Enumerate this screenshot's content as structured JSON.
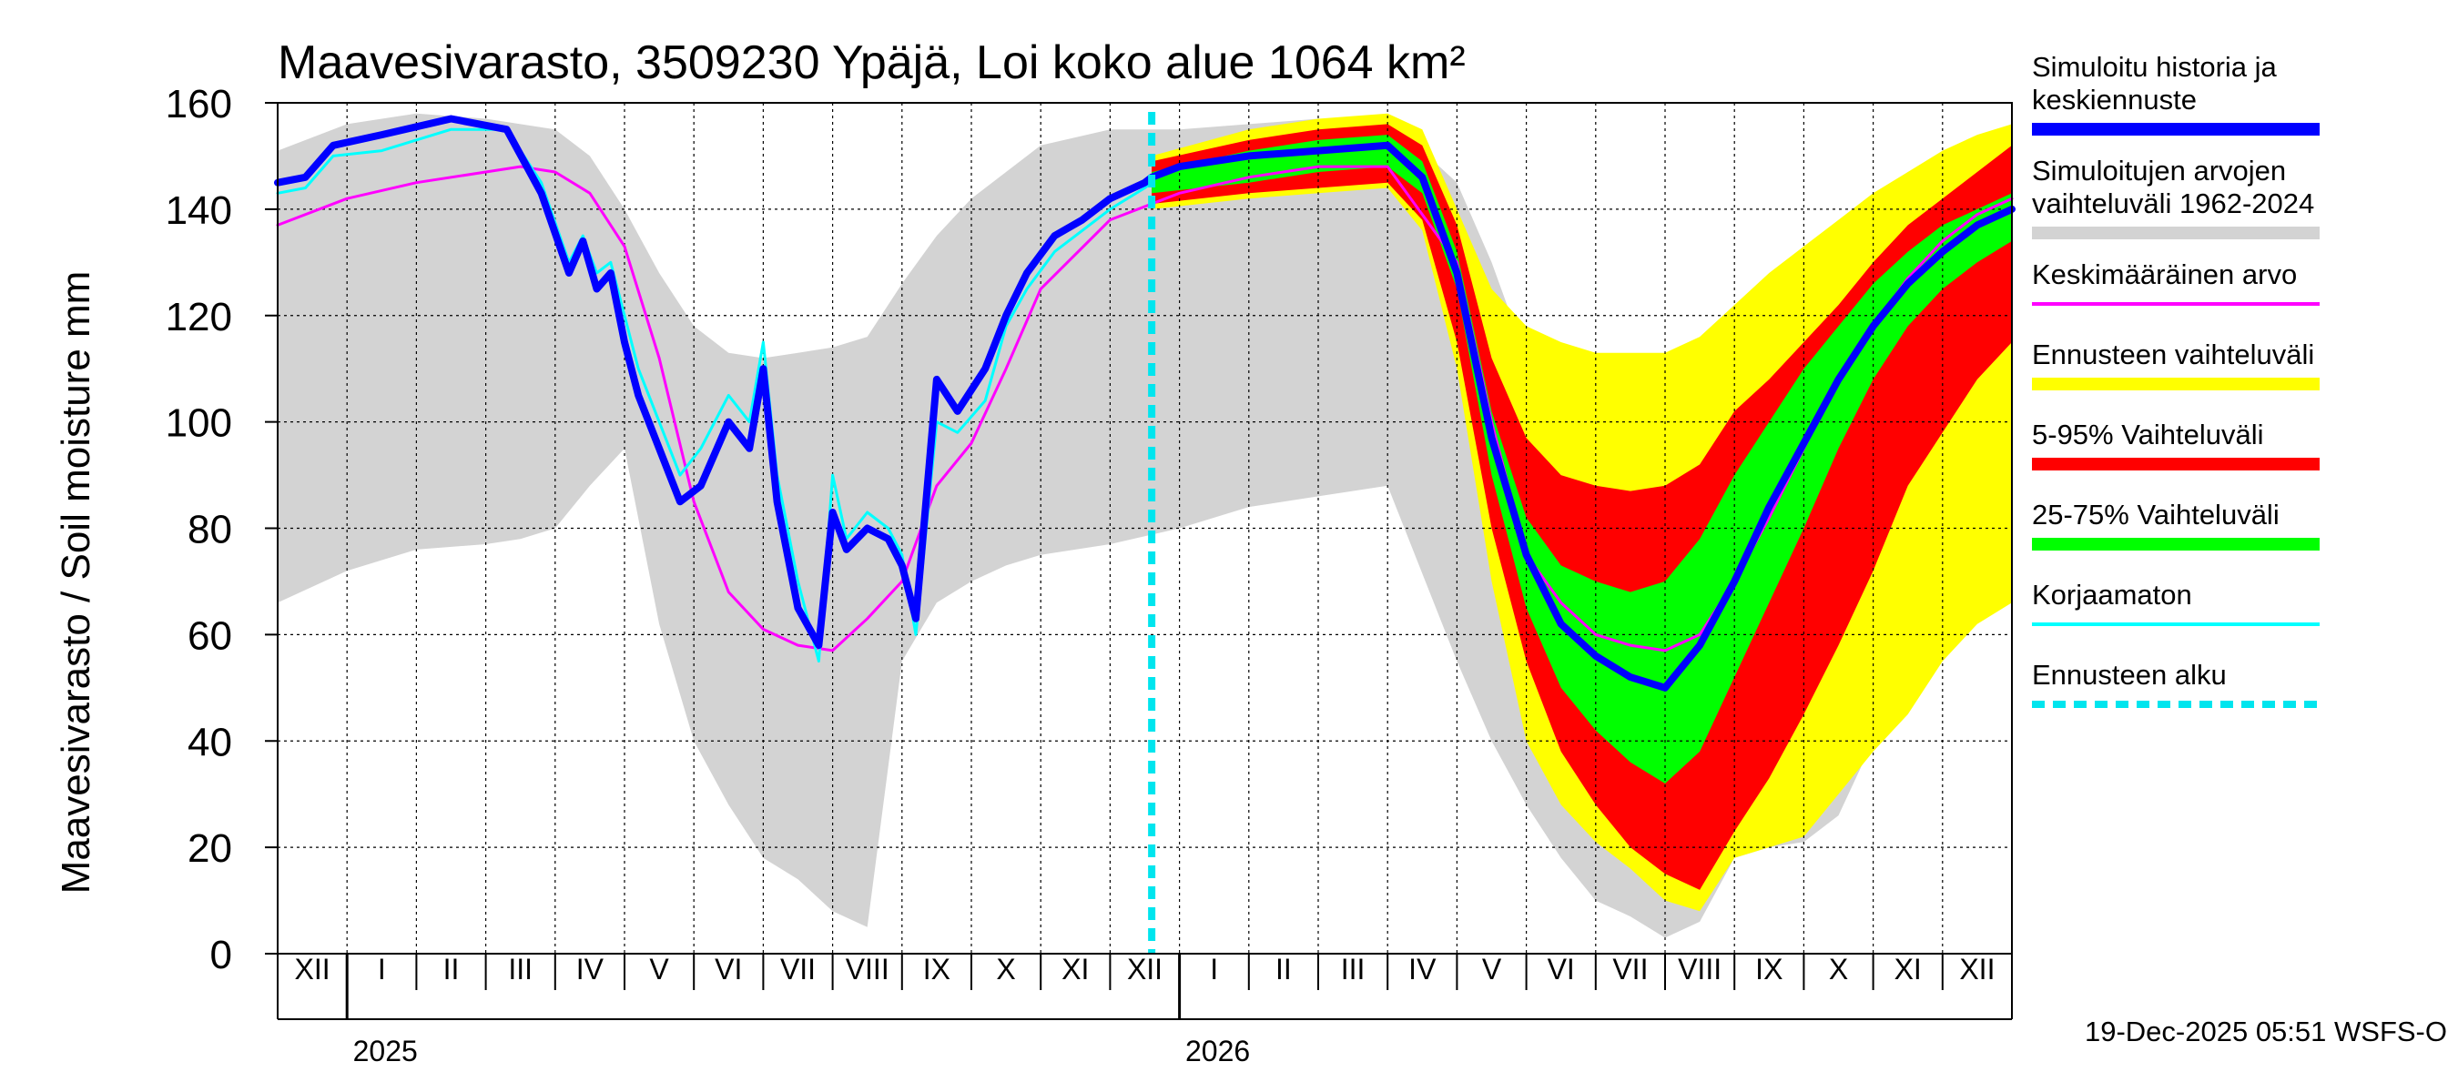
{
  "chart_data": {
    "type": "area",
    "title": "Maavesivarasto, 3509230 Ypäjä, Loi koko alue 1064 km²",
    "ylabel": "Maavesivarasto / Soil moisture   mm",
    "ylim": [
      0,
      160
    ],
    "yticks": [
      0,
      20,
      40,
      60,
      80,
      100,
      120,
      140,
      160
    ],
    "xlim_month": [
      0,
      25
    ],
    "grid": true,
    "forecast_start_month": 12.6,
    "months": [
      {
        "label": "XII",
        "pos": 0.5
      },
      {
        "label": "I",
        "pos": 1.5
      },
      {
        "label": "II",
        "pos": 2.5
      },
      {
        "label": "III",
        "pos": 3.5
      },
      {
        "label": "IV",
        "pos": 4.5
      },
      {
        "label": "V",
        "pos": 5.5
      },
      {
        "label": "VI",
        "pos": 6.5
      },
      {
        "label": "VII",
        "pos": 7.5
      },
      {
        "label": "VIII",
        "pos": 8.5
      },
      {
        "label": "IX",
        "pos": 9.5
      },
      {
        "label": "X",
        "pos": 10.5
      },
      {
        "label": "XI",
        "pos": 11.5
      },
      {
        "label": "XII",
        "pos": 12.5
      },
      {
        "label": "I",
        "pos": 13.5
      },
      {
        "label": "II",
        "pos": 14.5
      },
      {
        "label": "III",
        "pos": 15.5
      },
      {
        "label": "IV",
        "pos": 16.5
      },
      {
        "label": "V",
        "pos": 17.5
      },
      {
        "label": "VI",
        "pos": 18.5
      },
      {
        "label": "VII",
        "pos": 19.5
      },
      {
        "label": "VIII",
        "pos": 20.5
      },
      {
        "label": "IX",
        "pos": 21.5
      },
      {
        "label": "X",
        "pos": 22.5
      },
      {
        "label": "XI",
        "pos": 23.5
      },
      {
        "label": "XII",
        "pos": 24.5
      }
    ],
    "years": [
      {
        "label": "2025",
        "pos": 1.0
      },
      {
        "label": "2026",
        "pos": 13.0
      }
    ],
    "historical_range": {
      "name": "Simuloitujen arvojen vaihteluväli 1962-2024",
      "color": "#d3d3d3",
      "x": [
        0,
        1,
        2,
        3,
        3.5,
        4,
        4.5,
        5,
        5.5,
        6,
        6.5,
        7,
        7.5,
        8,
        8.5,
        9,
        9.5,
        10,
        10.5,
        11,
        12,
        13,
        14,
        15,
        16,
        17,
        17.5,
        18,
        18.5,
        19,
        19.5,
        20,
        20.5,
        21,
        21.5,
        22,
        22.5,
        23,
        23.5,
        24,
        24.5,
        25
      ],
      "low": [
        66,
        72,
        76,
        77,
        78,
        80,
        88,
        95,
        62,
        40,
        28,
        18,
        14,
        8,
        5,
        55,
        66,
        70,
        73,
        75,
        77,
        80,
        84,
        86,
        88,
        55,
        40,
        28,
        18,
        10,
        7,
        3,
        6,
        18,
        20,
        21,
        26,
        40,
        48,
        55,
        64,
        68
      ],
      "high": [
        151,
        156,
        158,
        157,
        156,
        155,
        150,
        140,
        128,
        118,
        113,
        112,
        113,
        114,
        116,
        126,
        135,
        142,
        147,
        152,
        155,
        155,
        156,
        157,
        157,
        145,
        130,
        112,
        100,
        92,
        88,
        86,
        92,
        104,
        116,
        128,
        136,
        142,
        147,
        150,
        153,
        155
      ]
    },
    "series": [
      {
        "name": "Ennusteen vaihteluväli",
        "color": "#ffff00",
        "x": [
          12.6,
          14,
          15,
          16,
          16.5,
          17,
          17.5,
          18,
          18.5,
          19,
          19.5,
          20,
          20.5,
          21,
          21.5,
          22,
          22.5,
          23,
          23.5,
          24,
          24.5,
          25
        ],
        "low": [
          140,
          142,
          143,
          144,
          136,
          110,
          70,
          40,
          28,
          21,
          16,
          10,
          8,
          18,
          20,
          22,
          30,
          38,
          45,
          55,
          62,
          66
        ],
        "high": [
          150,
          155,
          157,
          158,
          155,
          140,
          125,
          118,
          115,
          113,
          113,
          113,
          116,
          122,
          128,
          133,
          138,
          143,
          147,
          151,
          154,
          156
        ]
      },
      {
        "name": "5-95% Vaihteluväli",
        "color": "#ff0000",
        "x": [
          12.6,
          14,
          15,
          16,
          16.5,
          17,
          17.5,
          18,
          18.5,
          19,
          19.5,
          20,
          20.5,
          21,
          21.5,
          22,
          22.5,
          23,
          23.5,
          24,
          24.5,
          25
        ],
        "low": [
          141,
          143,
          144,
          145,
          138,
          115,
          80,
          55,
          38,
          28,
          20,
          15,
          12,
          23,
          33,
          45,
          58,
          72,
          88,
          98,
          108,
          115
        ],
        "high": [
          149,
          153,
          155,
          156,
          152,
          137,
          112,
          97,
          90,
          88,
          87,
          88,
          92,
          102,
          108,
          115,
          122,
          130,
          137,
          142,
          147,
          152
        ]
      },
      {
        "name": "25-75% Vaihteluväli",
        "color": "#00ff00",
        "x": [
          12.6,
          14,
          15,
          16,
          16.5,
          17,
          17.5,
          18,
          18.5,
          19,
          19.5,
          20,
          20.5,
          21,
          21.5,
          22,
          22.5,
          23,
          23.5,
          24,
          24.5,
          25
        ],
        "low": [
          143,
          145,
          147,
          148,
          143,
          125,
          90,
          65,
          50,
          42,
          36,
          32,
          38,
          52,
          66,
          80,
          95,
          108,
          118,
          125,
          130,
          134
        ],
        "high": [
          147,
          151,
          153,
          154,
          149,
          132,
          102,
          82,
          73,
          70,
          68,
          70,
          78,
          90,
          100,
          110,
          118,
          126,
          132,
          137,
          140,
          143
        ]
      }
    ],
    "lines": [
      {
        "name": "Keskimääräinen arvo",
        "color": "#ff00ff",
        "width": 3,
        "x": [
          0,
          1,
          2,
          3,
          3.5,
          4,
          4.5,
          5,
          5.5,
          6,
          6.5,
          7,
          7.5,
          8,
          8.5,
          9,
          9.5,
          10,
          10.5,
          11,
          12,
          13,
          14,
          15,
          16,
          17,
          17.5,
          18,
          18.5,
          19,
          19.5,
          20,
          20.5,
          21,
          21.5,
          22,
          22.5,
          23,
          23.5,
          24,
          24.5,
          25
        ],
        "y": [
          137,
          142,
          145,
          147,
          148,
          147,
          143,
          133,
          112,
          85,
          68,
          61,
          58,
          57,
          63,
          70,
          88,
          96,
          110,
          125,
          138,
          143,
          146,
          148,
          148,
          130,
          100,
          75,
          66,
          60,
          58,
          57,
          60,
          70,
          82,
          95,
          108,
          118,
          127,
          134,
          139,
          142
        ]
      },
      {
        "name": "Korjaamaton",
        "color": "#00ffff",
        "width": 3,
        "x": [
          0,
          0.4,
          0.8,
          1.5,
          2.5,
          3.3,
          3.8,
          4.2,
          4.4,
          4.6,
          4.8,
          5.0,
          5.2,
          5.5,
          5.8,
          6.1,
          6.5,
          6.8,
          7.0,
          7.2,
          7.5,
          7.8,
          8.0,
          8.2,
          8.5,
          8.8,
          9.0,
          9.2,
          9.5,
          9.8,
          10.2,
          10.5,
          10.8,
          11.2,
          11.6,
          12.0,
          12.5,
          12.6
        ],
        "y": [
          143,
          144,
          150,
          151,
          155,
          155,
          145,
          130,
          135,
          128,
          130,
          120,
          110,
          100,
          90,
          95,
          105,
          100,
          115,
          90,
          70,
          55,
          90,
          78,
          83,
          80,
          75,
          60,
          100,
          98,
          104,
          118,
          125,
          132,
          136,
          140,
          144,
          145
        ]
      },
      {
        "name": "Simuloitu historia ja keskiennuste",
        "color": "#0000ff",
        "width": 8,
        "x": [
          0,
          0.4,
          0.8,
          1.5,
          2.5,
          3.3,
          3.8,
          4.2,
          4.4,
          4.6,
          4.8,
          5.0,
          5.2,
          5.5,
          5.8,
          6.1,
          6.5,
          6.8,
          7.0,
          7.2,
          7.5,
          7.8,
          8.0,
          8.2,
          8.5,
          8.8,
          9.0,
          9.2,
          9.5,
          9.8,
          10.2,
          10.5,
          10.8,
          11.2,
          11.6,
          12.0,
          12.5,
          12.6,
          13,
          14,
          15,
          16,
          16.5,
          17,
          17.5,
          18,
          18.5,
          19,
          19.5,
          20,
          20.5,
          21,
          21.5,
          22,
          22.5,
          23,
          23.5,
          24,
          24.5,
          25
        ],
        "y": [
          145,
          146,
          152,
          154,
          157,
          155,
          143,
          128,
          134,
          125,
          128,
          115,
          105,
          95,
          85,
          88,
          100,
          95,
          110,
          85,
          65,
          58,
          83,
          76,
          80,
          78,
          73,
          63,
          108,
          102,
          110,
          120,
          128,
          135,
          138,
          142,
          145,
          146,
          148,
          150,
          151,
          152,
          146,
          128,
          97,
          75,
          62,
          56,
          52,
          50,
          58,
          70,
          84,
          96,
          108,
          118,
          126,
          132,
          137,
          140
        ]
      }
    ],
    "legend": [
      {
        "label": "Simuloitu historia ja keskiennuste",
        "color": "#0000ff",
        "style": "thick"
      },
      {
        "label": "Simuloitujen arvojen vaihteluväli 1962-2024",
        "color": "#d3d3d3",
        "style": "thick"
      },
      {
        "label": "Keskimääräinen arvo",
        "color": "#ff00ff",
        "style": "thin"
      },
      {
        "label": "Ennusteen vaihteluväli",
        "color": "#ffff00",
        "style": "thick"
      },
      {
        "label": "5-95% Vaihteluväli",
        "color": "#ff0000",
        "style": "thick"
      },
      {
        "label": "25-75% Vaihteluväli",
        "color": "#00ff00",
        "style": "thick"
      },
      {
        "label": "Korjaamaton",
        "color": "#00ffff",
        "style": "thin"
      },
      {
        "label": "Ennusteen alku",
        "color": "#00e5ee",
        "style": "dashed"
      }
    ],
    "footer": "19-Dec-2025 05:51 WSFS-O"
  }
}
